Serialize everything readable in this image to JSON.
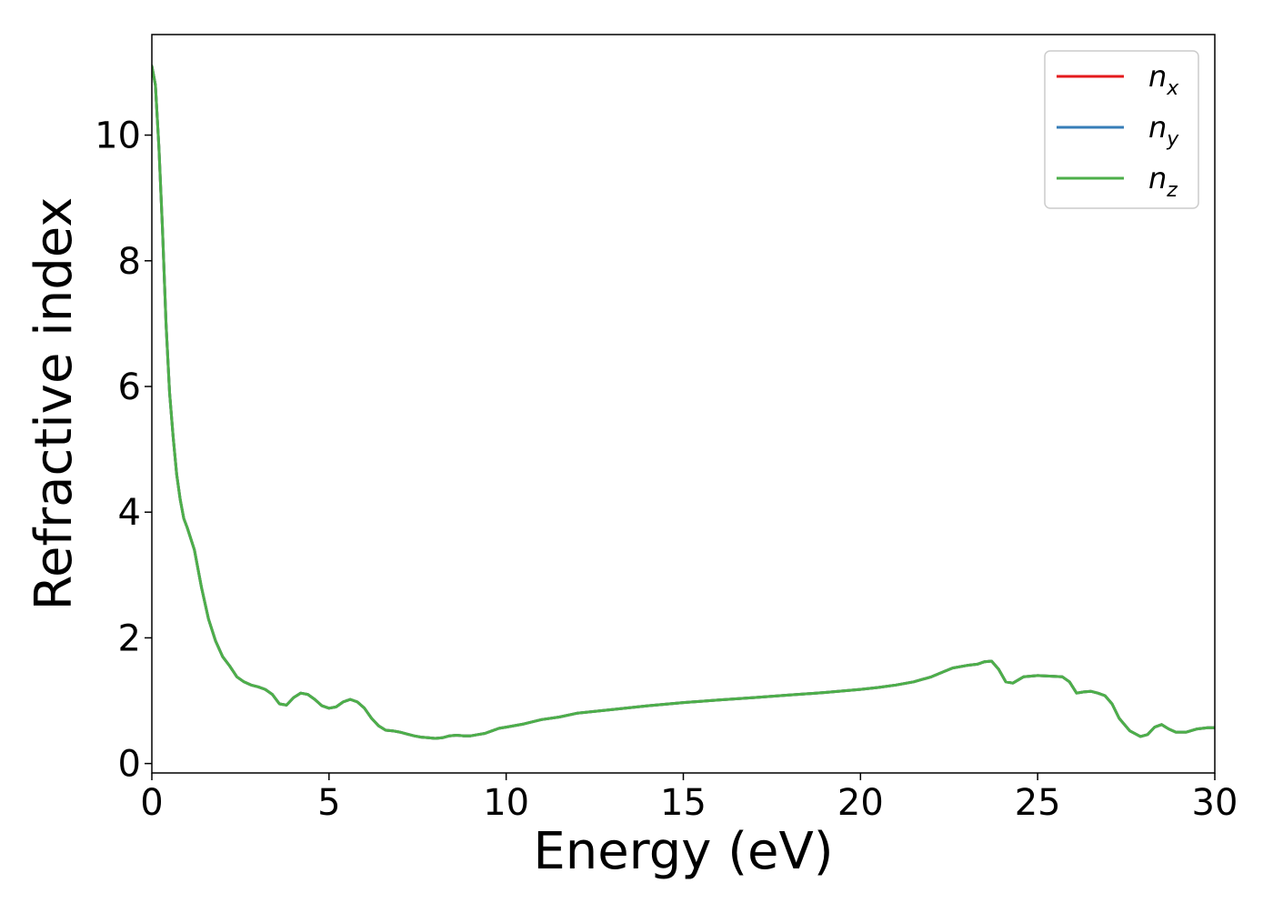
{
  "chart_data": {
    "type": "line",
    "title": "",
    "xlabel": "Energy (eV)",
    "ylabel": "Refractive index",
    "xlim": [
      0,
      30
    ],
    "ylim": [
      -0.15,
      11.6
    ],
    "xticks": [
      0,
      5,
      10,
      15,
      20,
      25,
      30
    ],
    "xtick_labels": [
      "0",
      "5",
      "10",
      "15",
      "20",
      "25",
      "30"
    ],
    "yticks": [
      0,
      2,
      4,
      6,
      8,
      10
    ],
    "ytick_labels": [
      "0",
      "2",
      "4",
      "6",
      "8",
      "10"
    ],
    "grid": false,
    "legend_position": "top-right",
    "legend": [
      {
        "base": "n",
        "sub": "x",
        "color": "#e41a1c"
      },
      {
        "base": "n",
        "sub": "y",
        "color": "#377eb8"
      },
      {
        "base": "n",
        "sub": "z",
        "color": "#4daf4a"
      }
    ],
    "x": [
      0,
      0.1,
      0.2,
      0.3,
      0.4,
      0.5,
      0.6,
      0.7,
      0.8,
      0.9,
      1.0,
      1.2,
      1.4,
      1.6,
      1.8,
      2.0,
      2.2,
      2.4,
      2.6,
      2.8,
      3.0,
      3.2,
      3.4,
      3.6,
      3.8,
      4.0,
      4.2,
      4.4,
      4.6,
      4.8,
      5.0,
      5.2,
      5.4,
      5.6,
      5.8,
      6.0,
      6.2,
      6.4,
      6.6,
      6.8,
      7.0,
      7.2,
      7.4,
      7.6,
      7.8,
      8.0,
      8.2,
      8.4,
      8.6,
      8.8,
      9.0,
      9.2,
      9.4,
      9.6,
      9.8,
      10.0,
      10.5,
      11.0,
      11.5,
      12.0,
      13.0,
      14.0,
      15.0,
      16.0,
      17.0,
      18.0,
      19.0,
      20.0,
      20.5,
      21.0,
      21.5,
      22.0,
      22.3,
      22.6,
      23.0,
      23.3,
      23.5,
      23.7,
      23.9,
      24.1,
      24.3,
      24.6,
      25.0,
      25.4,
      25.7,
      25.9,
      26.1,
      26.3,
      26.5,
      26.7,
      26.9,
      27.1,
      27.3,
      27.6,
      27.9,
      28.1,
      28.3,
      28.5,
      28.7,
      28.9,
      29.2,
      29.5,
      29.8,
      30.0
    ],
    "series": [
      {
        "color": "#e41a1c",
        "values": [
          11.1,
          10.8,
          9.8,
          8.5,
          7.0,
          5.9,
          5.2,
          4.6,
          4.2,
          3.9,
          3.75,
          3.4,
          2.8,
          2.3,
          1.95,
          1.7,
          1.55,
          1.38,
          1.3,
          1.25,
          1.22,
          1.18,
          1.1,
          0.95,
          0.93,
          1.05,
          1.12,
          1.1,
          1.02,
          0.92,
          0.88,
          0.9,
          0.98,
          1.02,
          0.98,
          0.88,
          0.72,
          0.6,
          0.53,
          0.52,
          0.5,
          0.47,
          0.44,
          0.42,
          0.41,
          0.4,
          0.41,
          0.44,
          0.45,
          0.44,
          0.44,
          0.46,
          0.48,
          0.52,
          0.56,
          0.58,
          0.63,
          0.7,
          0.74,
          0.8,
          0.86,
          0.92,
          0.97,
          1.01,
          1.05,
          1.09,
          1.13,
          1.18,
          1.21,
          1.25,
          1.3,
          1.38,
          1.45,
          1.52,
          1.56,
          1.58,
          1.62,
          1.63,
          1.5,
          1.3,
          1.28,
          1.38,
          1.4,
          1.39,
          1.38,
          1.3,
          1.12,
          1.14,
          1.15,
          1.12,
          1.08,
          0.95,
          0.72,
          0.52,
          0.43,
          0.46,
          0.58,
          0.62,
          0.55,
          0.5,
          0.5,
          0.55,
          0.57,
          0.57
        ]
      },
      {
        "color": "#377eb8",
        "values": [
          11.1,
          10.8,
          9.8,
          8.5,
          7.0,
          5.9,
          5.2,
          4.6,
          4.2,
          3.9,
          3.75,
          3.4,
          2.8,
          2.3,
          1.95,
          1.7,
          1.55,
          1.38,
          1.3,
          1.25,
          1.22,
          1.18,
          1.1,
          0.95,
          0.93,
          1.05,
          1.12,
          1.1,
          1.02,
          0.92,
          0.88,
          0.9,
          0.98,
          1.02,
          0.98,
          0.88,
          0.72,
          0.6,
          0.53,
          0.52,
          0.5,
          0.47,
          0.44,
          0.42,
          0.41,
          0.4,
          0.41,
          0.44,
          0.45,
          0.44,
          0.44,
          0.46,
          0.48,
          0.52,
          0.56,
          0.58,
          0.63,
          0.7,
          0.74,
          0.8,
          0.86,
          0.92,
          0.97,
          1.01,
          1.05,
          1.09,
          1.13,
          1.18,
          1.21,
          1.25,
          1.3,
          1.38,
          1.45,
          1.52,
          1.56,
          1.58,
          1.62,
          1.63,
          1.5,
          1.3,
          1.28,
          1.38,
          1.4,
          1.39,
          1.38,
          1.3,
          1.12,
          1.14,
          1.15,
          1.12,
          1.08,
          0.95,
          0.72,
          0.52,
          0.43,
          0.46,
          0.58,
          0.62,
          0.55,
          0.5,
          0.5,
          0.55,
          0.57,
          0.57
        ]
      },
      {
        "color": "#4daf4a",
        "values": [
          11.1,
          10.8,
          9.8,
          8.5,
          7.0,
          5.9,
          5.2,
          4.6,
          4.2,
          3.9,
          3.75,
          3.4,
          2.8,
          2.3,
          1.95,
          1.7,
          1.55,
          1.38,
          1.3,
          1.25,
          1.22,
          1.18,
          1.1,
          0.95,
          0.93,
          1.05,
          1.12,
          1.1,
          1.02,
          0.92,
          0.88,
          0.9,
          0.98,
          1.02,
          0.98,
          0.88,
          0.72,
          0.6,
          0.53,
          0.52,
          0.5,
          0.47,
          0.44,
          0.42,
          0.41,
          0.4,
          0.41,
          0.44,
          0.45,
          0.44,
          0.44,
          0.46,
          0.48,
          0.52,
          0.56,
          0.58,
          0.63,
          0.7,
          0.74,
          0.8,
          0.86,
          0.92,
          0.97,
          1.01,
          1.05,
          1.09,
          1.13,
          1.18,
          1.21,
          1.25,
          1.3,
          1.38,
          1.45,
          1.52,
          1.56,
          1.58,
          1.62,
          1.63,
          1.5,
          1.3,
          1.28,
          1.38,
          1.4,
          1.39,
          1.38,
          1.3,
          1.12,
          1.14,
          1.15,
          1.12,
          1.08,
          0.95,
          0.72,
          0.52,
          0.43,
          0.46,
          0.58,
          0.62,
          0.55,
          0.5,
          0.5,
          0.55,
          0.57,
          0.57
        ]
      }
    ]
  }
}
